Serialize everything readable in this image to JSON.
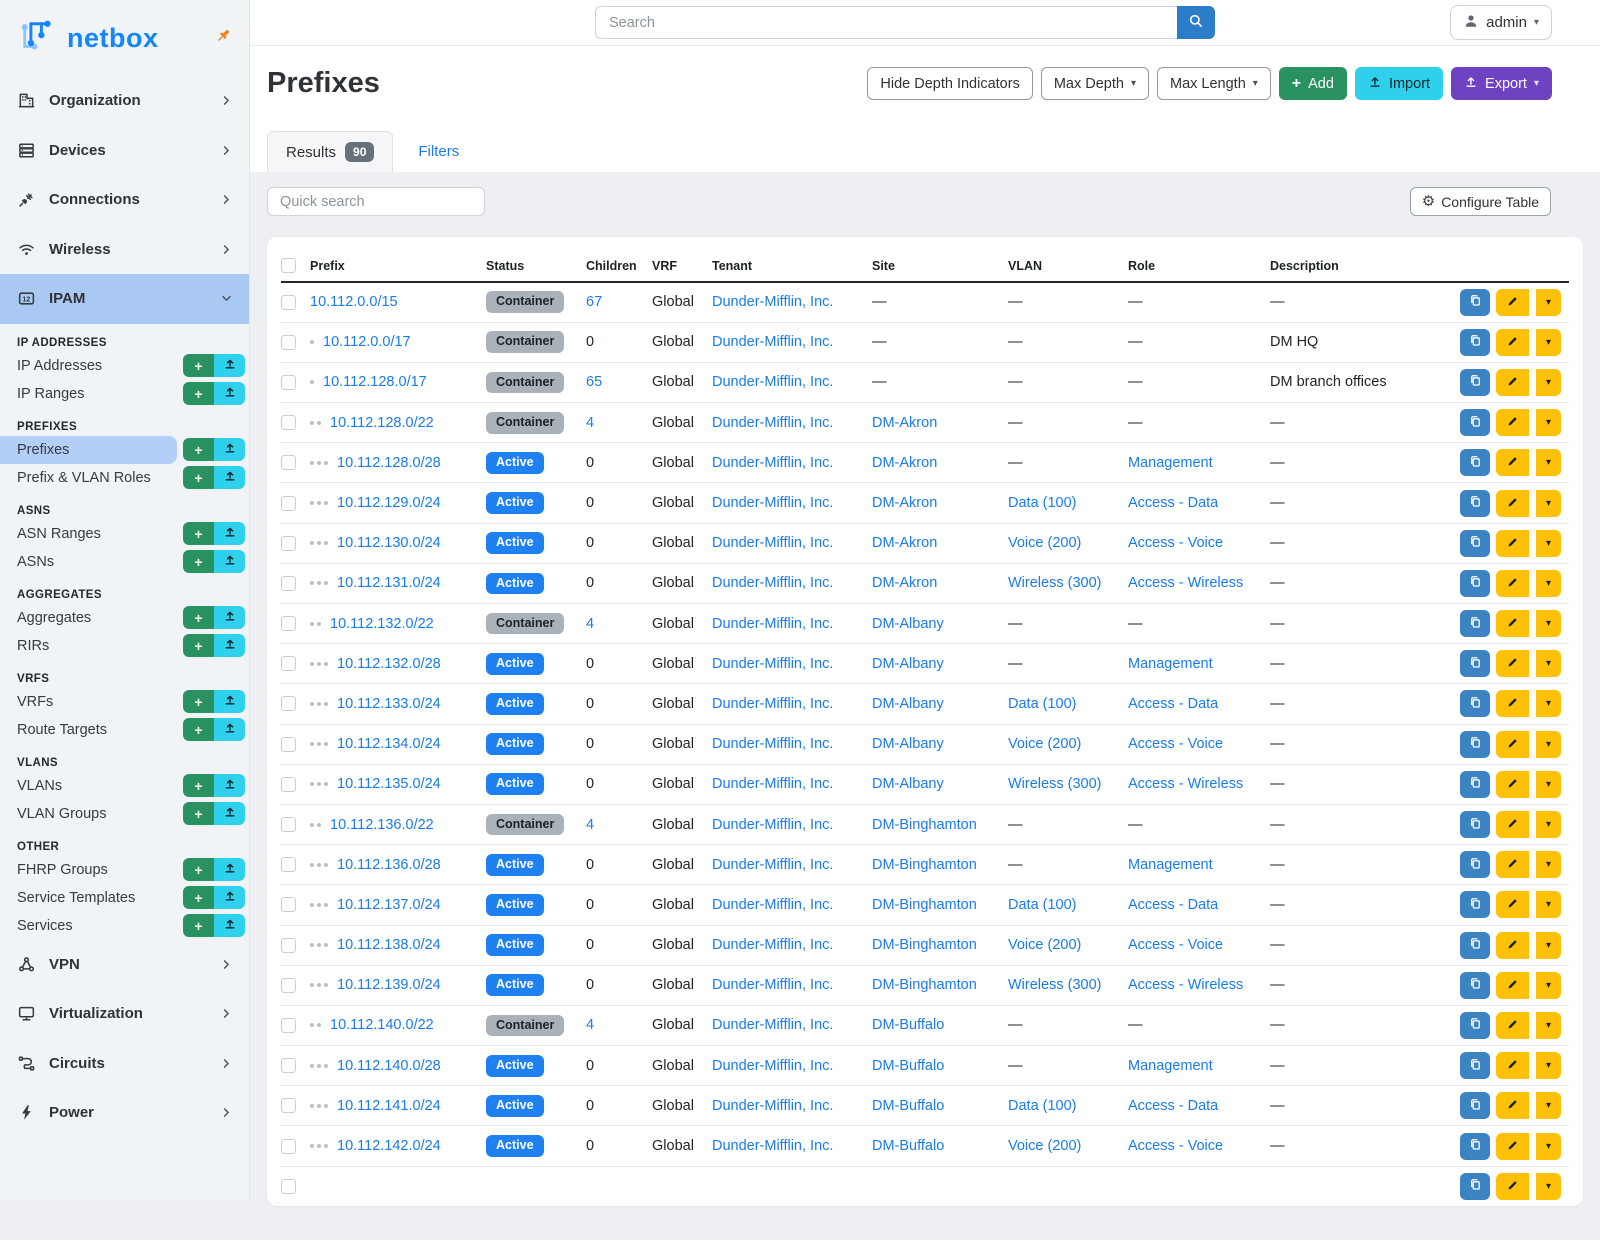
{
  "colors": {
    "brand": "#1685fb",
    "link": "#1b7ce5",
    "green": "#2a9160",
    "cyan": "#2fd0ec",
    "purple": "#6f42c1",
    "yellow": "#ffc107",
    "copy-blue": "#3c83c3",
    "search-blue": "#2b7dc7",
    "badge-active": "#1f80f0",
    "badge-container": "#aab1b8",
    "sidebar-active": "#a9c9f2",
    "subitem-active": "#b4cff7",
    "pin-orange": "#f58020"
  },
  "topbar": {
    "search_placeholder": "Search",
    "user": "admin"
  },
  "sidebar": {
    "logo_text": "netbox",
    "items_top": [
      {
        "label": "Organization",
        "icon": "building-icon"
      },
      {
        "label": "Devices",
        "icon": "server-rack-icon"
      },
      {
        "label": "Connections",
        "icon": "plug-icon"
      },
      {
        "label": "Wireless",
        "icon": "wifi-icon"
      },
      {
        "label": "IPAM",
        "icon": "ipam-counter-icon",
        "active": true,
        "expanded": true
      }
    ],
    "sections": [
      {
        "title": "IP ADDRESSES",
        "items": [
          {
            "label": "IP Addresses"
          },
          {
            "label": "IP Ranges"
          }
        ]
      },
      {
        "title": "PREFIXES",
        "items": [
          {
            "label": "Prefixes",
            "active": true
          },
          {
            "label": "Prefix & VLAN Roles"
          }
        ]
      },
      {
        "title": "ASNS",
        "items": [
          {
            "label": "ASN Ranges"
          },
          {
            "label": "ASNs"
          }
        ]
      },
      {
        "title": "AGGREGATES",
        "items": [
          {
            "label": "Aggregates"
          },
          {
            "label": "RIRs"
          }
        ]
      },
      {
        "title": "VRFS",
        "items": [
          {
            "label": "VRFs"
          },
          {
            "label": "Route Targets"
          }
        ]
      },
      {
        "title": "VLANS",
        "items": [
          {
            "label": "VLANs"
          },
          {
            "label": "VLAN Groups"
          }
        ]
      },
      {
        "title": "OTHER",
        "items": [
          {
            "label": "FHRP Groups"
          },
          {
            "label": "Service Templates"
          },
          {
            "label": "Services"
          }
        ]
      }
    ],
    "items_bottom": [
      {
        "label": "VPN",
        "icon": "share-nodes-icon"
      },
      {
        "label": "Virtualization",
        "icon": "monitor-icon"
      },
      {
        "label": "Circuits",
        "icon": "circuit-path-icon"
      },
      {
        "label": "Power",
        "icon": "lightning-bolt-icon"
      }
    ]
  },
  "page": {
    "title": "Prefixes",
    "toolbar": {
      "hide_depth_label": "Hide Depth Indicators",
      "max_depth_label": "Max Depth",
      "max_length_label": "Max Length",
      "add_label": "Add",
      "import_label": "Import",
      "export_label": "Export"
    },
    "tabs": {
      "results_label": "Results",
      "results_count": "90",
      "filters_label": "Filters"
    },
    "quick_search_placeholder": "Quick search",
    "configure_table_label": "Configure Table"
  },
  "table": {
    "columns": [
      "Prefix",
      "Status",
      "Children",
      "VRF",
      "Tenant",
      "Site",
      "VLAN",
      "Role",
      "Description"
    ],
    "rows": [
      {
        "depth": 0,
        "prefix": "10.112.0.0/15",
        "status": "Container",
        "children": "67",
        "children_link": true,
        "vrf": "Global",
        "tenant": "Dunder-Mifflin, Inc.",
        "site": "—",
        "vlan": "—",
        "role": "—",
        "description": "—"
      },
      {
        "depth": 1,
        "prefix": "10.112.0.0/17",
        "status": "Container",
        "children": "0",
        "children_link": false,
        "vrf": "Global",
        "tenant": "Dunder-Mifflin, Inc.",
        "site": "—",
        "vlan": "—",
        "role": "—",
        "description": "DM HQ"
      },
      {
        "depth": 1,
        "prefix": "10.112.128.0/17",
        "status": "Container",
        "children": "65",
        "children_link": true,
        "vrf": "Global",
        "tenant": "Dunder-Mifflin, Inc.",
        "site": "—",
        "vlan": "—",
        "role": "—",
        "description": "DM branch offices"
      },
      {
        "depth": 2,
        "prefix": "10.112.128.0/22",
        "status": "Container",
        "children": "4",
        "children_link": true,
        "vrf": "Global",
        "tenant": "Dunder-Mifflin, Inc.",
        "site": "DM-Akron",
        "vlan": "—",
        "role": "—",
        "description": "—"
      },
      {
        "depth": 3,
        "prefix": "10.112.128.0/28",
        "status": "Active",
        "children": "0",
        "children_link": false,
        "vrf": "Global",
        "tenant": "Dunder-Mifflin, Inc.",
        "site": "DM-Akron",
        "vlan": "—",
        "role": "Management",
        "description": "—"
      },
      {
        "depth": 3,
        "prefix": "10.112.129.0/24",
        "status": "Active",
        "children": "0",
        "children_link": false,
        "vrf": "Global",
        "tenant": "Dunder-Mifflin, Inc.",
        "site": "DM-Akron",
        "vlan": "Data (100)",
        "role": "Access - Data",
        "description": "—"
      },
      {
        "depth": 3,
        "prefix": "10.112.130.0/24",
        "status": "Active",
        "children": "0",
        "children_link": false,
        "vrf": "Global",
        "tenant": "Dunder-Mifflin, Inc.",
        "site": "DM-Akron",
        "vlan": "Voice (200)",
        "role": "Access - Voice",
        "description": "—"
      },
      {
        "depth": 3,
        "prefix": "10.112.131.0/24",
        "status": "Active",
        "children": "0",
        "children_link": false,
        "vrf": "Global",
        "tenant": "Dunder-Mifflin, Inc.",
        "site": "DM-Akron",
        "vlan": "Wireless (300)",
        "role": "Access - Wireless",
        "description": "—"
      },
      {
        "depth": 2,
        "prefix": "10.112.132.0/22",
        "status": "Container",
        "children": "4",
        "children_link": true,
        "vrf": "Global",
        "tenant": "Dunder-Mifflin, Inc.",
        "site": "DM-Albany",
        "vlan": "—",
        "role": "—",
        "description": "—"
      },
      {
        "depth": 3,
        "prefix": "10.112.132.0/28",
        "status": "Active",
        "children": "0",
        "children_link": false,
        "vrf": "Global",
        "tenant": "Dunder-Mifflin, Inc.",
        "site": "DM-Albany",
        "vlan": "—",
        "role": "Management",
        "description": "—"
      },
      {
        "depth": 3,
        "prefix": "10.112.133.0/24",
        "status": "Active",
        "children": "0",
        "children_link": false,
        "vrf": "Global",
        "tenant": "Dunder-Mifflin, Inc.",
        "site": "DM-Albany",
        "vlan": "Data (100)",
        "role": "Access - Data",
        "description": "—"
      },
      {
        "depth": 3,
        "prefix": "10.112.134.0/24",
        "status": "Active",
        "children": "0",
        "children_link": false,
        "vrf": "Global",
        "tenant": "Dunder-Mifflin, Inc.",
        "site": "DM-Albany",
        "vlan": "Voice (200)",
        "role": "Access - Voice",
        "description": "—"
      },
      {
        "depth": 3,
        "prefix": "10.112.135.0/24",
        "status": "Active",
        "children": "0",
        "children_link": false,
        "vrf": "Global",
        "tenant": "Dunder-Mifflin, Inc.",
        "site": "DM-Albany",
        "vlan": "Wireless (300)",
        "role": "Access - Wireless",
        "description": "—"
      },
      {
        "depth": 2,
        "prefix": "10.112.136.0/22",
        "status": "Container",
        "children": "4",
        "children_link": true,
        "vrf": "Global",
        "tenant": "Dunder-Mifflin, Inc.",
        "site": "DM-Binghamton",
        "vlan": "—",
        "role": "—",
        "description": "—"
      },
      {
        "depth": 3,
        "prefix": "10.112.136.0/28",
        "status": "Active",
        "children": "0",
        "children_link": false,
        "vrf": "Global",
        "tenant": "Dunder-Mifflin, Inc.",
        "site": "DM-Binghamton",
        "vlan": "—",
        "role": "Management",
        "description": "—"
      },
      {
        "depth": 3,
        "prefix": "10.112.137.0/24",
        "status": "Active",
        "children": "0",
        "children_link": false,
        "vrf": "Global",
        "tenant": "Dunder-Mifflin, Inc.",
        "site": "DM-Binghamton",
        "vlan": "Data (100)",
        "role": "Access - Data",
        "description": "—"
      },
      {
        "depth": 3,
        "prefix": "10.112.138.0/24",
        "status": "Active",
        "children": "0",
        "children_link": false,
        "vrf": "Global",
        "tenant": "Dunder-Mifflin, Inc.",
        "site": "DM-Binghamton",
        "vlan": "Voice (200)",
        "role": "Access - Voice",
        "description": "—"
      },
      {
        "depth": 3,
        "prefix": "10.112.139.0/24",
        "status": "Active",
        "children": "0",
        "children_link": false,
        "vrf": "Global",
        "tenant": "Dunder-Mifflin, Inc.",
        "site": "DM-Binghamton",
        "vlan": "Wireless (300)",
        "role": "Access - Wireless",
        "description": "—"
      },
      {
        "depth": 2,
        "prefix": "10.112.140.0/22",
        "status": "Container",
        "children": "4",
        "children_link": true,
        "vrf": "Global",
        "tenant": "Dunder-Mifflin, Inc.",
        "site": "DM-Buffalo",
        "vlan": "—",
        "role": "—",
        "description": "—"
      },
      {
        "depth": 3,
        "prefix": "10.112.140.0/28",
        "status": "Active",
        "children": "0",
        "children_link": false,
        "vrf": "Global",
        "tenant": "Dunder-Mifflin, Inc.",
        "site": "DM-Buffalo",
        "vlan": "—",
        "role": "Management",
        "description": "—"
      },
      {
        "depth": 3,
        "prefix": "10.112.141.0/24",
        "status": "Active",
        "children": "0",
        "children_link": false,
        "vrf": "Global",
        "tenant": "Dunder-Mifflin, Inc.",
        "site": "DM-Buffalo",
        "vlan": "Data (100)",
        "role": "Access - Data",
        "description": "—"
      },
      {
        "depth": 3,
        "prefix": "10.112.142.0/24",
        "status": "Active",
        "children": "0",
        "children_link": false,
        "vrf": "Global",
        "tenant": "Dunder-Mifflin, Inc.",
        "site": "DM-Buffalo",
        "vlan": "Voice (200)",
        "role": "Access - Voice",
        "description": "—"
      },
      {
        "partial": true
      }
    ]
  }
}
